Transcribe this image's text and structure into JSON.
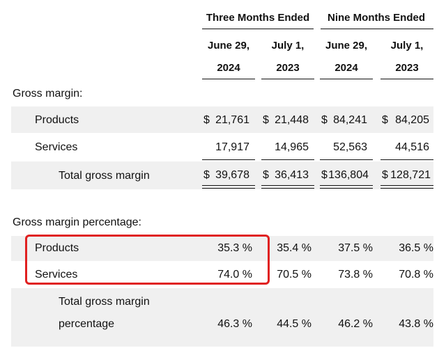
{
  "header": {
    "group_three": "Three Months Ended",
    "group_nine": "Nine Months Ended",
    "col1": {
      "line1": "June 29,",
      "line2": "2024"
    },
    "col2": {
      "line1": "July 1,",
      "line2": "2023"
    },
    "col3": {
      "line1": "June 29,",
      "line2": "2024"
    },
    "col4": {
      "line1": "July 1,",
      "line2": "2023"
    }
  },
  "gross_margin": {
    "section_label": "Gross margin:",
    "currency": "$",
    "products": {
      "label": "Products",
      "values": [
        "21,761",
        "21,448",
        "84,241",
        "84,205"
      ]
    },
    "services": {
      "label": "Services",
      "values": [
        "17,917",
        "14,965",
        "52,563",
        "44,516"
      ]
    },
    "total": {
      "label": "Total gross margin",
      "values": [
        "39,678",
        "36,413",
        "136,804",
        "128,721"
      ]
    }
  },
  "gross_margin_pct": {
    "section_label": "Gross margin percentage:",
    "products": {
      "label": "Products",
      "values": [
        "35.3 %",
        "35.4 %",
        "37.5 %",
        "36.5 %"
      ]
    },
    "services": {
      "label": "Services",
      "values": [
        "74.0 %",
        "70.5 %",
        "73.8 %",
        "70.8 %"
      ]
    },
    "total": {
      "label_line1": "Total gross margin",
      "label_line2": "percentage",
      "values": [
        "46.3 %",
        "44.5 %",
        "46.2 %",
        "43.8 %"
      ]
    }
  },
  "highlight": {
    "color": "#e02020"
  }
}
